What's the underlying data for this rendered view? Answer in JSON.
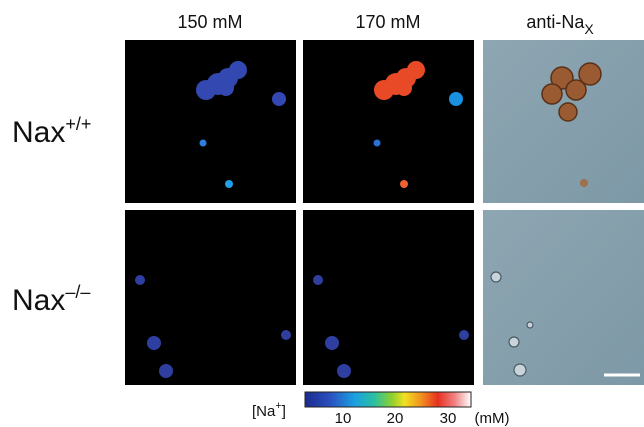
{
  "columns": [
    {
      "label": "150 mM"
    },
    {
      "label": "170 mM"
    },
    {
      "label": "anti-Na",
      "subscript": "X"
    }
  ],
  "rows": [
    {
      "label": "Nax",
      "superscript": "+/+"
    },
    {
      "label": "Nax",
      "superscript": "–/–"
    }
  ],
  "colorbar": {
    "label": "[Na",
    "label_superscript": "+",
    "label_end": "]",
    "ticks": [
      "10",
      "20",
      "30"
    ],
    "unit": "(mM)"
  }
}
